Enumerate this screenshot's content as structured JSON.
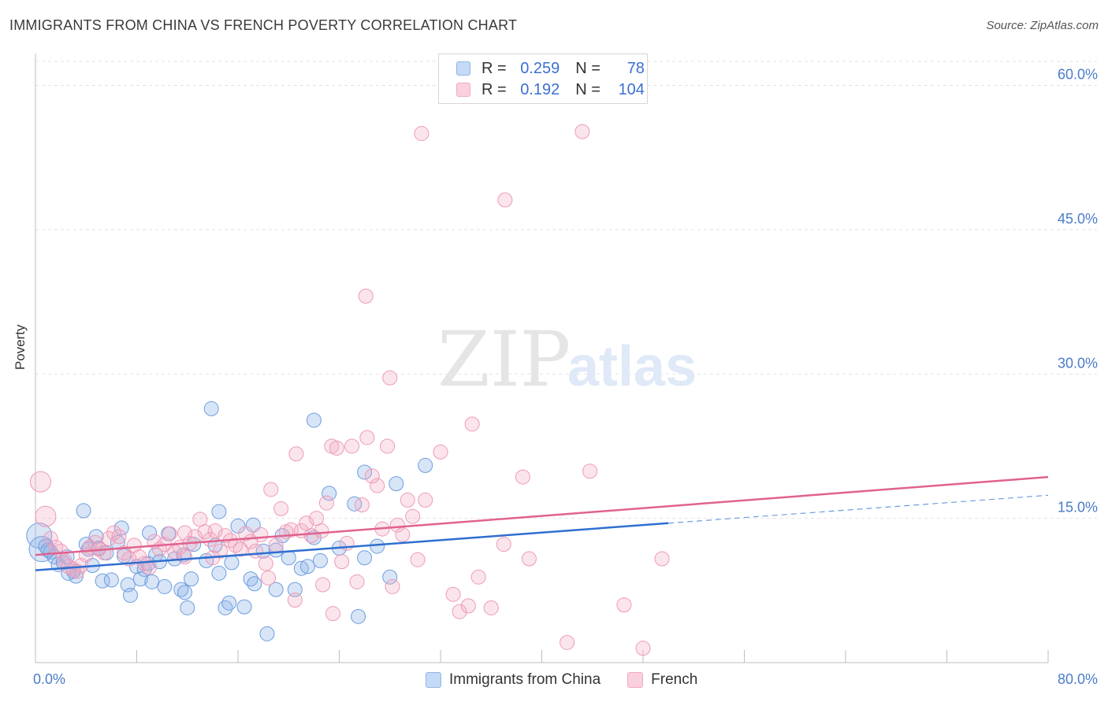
{
  "title": "IMMIGRANTS FROM CHINA VS FRENCH POVERTY CORRELATION CHART",
  "source": "Source: ZipAtlas.com",
  "watermark": {
    "zip": "ZIP",
    "atlas": "atlas"
  },
  "legend": {
    "rows": [
      {
        "r_label": "R =",
        "r_value": "0.259",
        "n_label": "N =",
        "n_value": "78"
      },
      {
        "r_label": "R =",
        "r_value": "0.192",
        "n_label": "N =",
        "n_value": "104"
      }
    ]
  },
  "colors": {
    "blue": "#8fb4e8",
    "blue_line": "#2f6fd0",
    "pink": "#f3a9c1",
    "pink_line": "#e0628f",
    "axis_text": "#4a7cc9"
  },
  "chart_data": {
    "type": "scatter",
    "title": "IMMIGRANTS FROM CHINA VS FRENCH POVERTY CORRELATION CHART",
    "xlabel": "",
    "ylabel": "Poverty",
    "xlim": [
      0,
      80
    ],
    "ylim": [
      0,
      62.5
    ],
    "x_tick_labels": [
      "0.0%",
      "80.0%"
    ],
    "y_ticks": [
      15,
      30,
      45,
      60
    ],
    "y_tick_labels": [
      "15.0%",
      "30.0%",
      "45.0%",
      "60.0%"
    ],
    "grid": "horizontal dashed",
    "legend_position": "top-center",
    "series": [
      {
        "name": "Immigrants from China",
        "color": "#8fb4e8",
        "trend": {
          "x": [
            0,
            50
          ],
          "y": [
            9.6,
            14.5
          ],
          "dashed_extension": {
            "x": [
              50,
              80
            ],
            "y": [
              14.5,
              17.4
            ]
          }
        },
        "points": [
          [
            0.3,
            13.2
          ],
          [
            0.5,
            11.8
          ],
          [
            0.8,
            12.1
          ],
          [
            1.2,
            11.5
          ],
          [
            1.5,
            11.0
          ],
          [
            1.8,
            10.2
          ],
          [
            2.2,
            10.4
          ],
          [
            2.5,
            11.0
          ],
          [
            3.0,
            9.5
          ],
          [
            3.2,
            9.0
          ],
          [
            4.0,
            12.3
          ],
          [
            4.2,
            11.8
          ],
          [
            4.5,
            10.1
          ],
          [
            4.8,
            13.1
          ],
          [
            5.0,
            11.9
          ],
          [
            5.3,
            8.5
          ],
          [
            5.6,
            11.4
          ],
          [
            6.0,
            8.6
          ],
          [
            6.5,
            12.5
          ],
          [
            7.0,
            11.1
          ],
          [
            7.3,
            8.1
          ],
          [
            7.5,
            7.0
          ],
          [
            8.0,
            10.0
          ],
          [
            8.3,
            8.7
          ],
          [
            8.6,
            9.7
          ],
          [
            8.9,
            10.3
          ],
          [
            9.2,
            8.4
          ],
          [
            9.5,
            11.2
          ],
          [
            9.8,
            10.5
          ],
          [
            10.2,
            7.9
          ],
          [
            10.5,
            13.4
          ],
          [
            11.0,
            10.8
          ],
          [
            11.5,
            7.6
          ],
          [
            11.8,
            7.3
          ],
          [
            12.0,
            5.7
          ],
          [
            12.3,
            8.7
          ],
          [
            12.5,
            12.3
          ],
          [
            13.5,
            10.6
          ],
          [
            14.2,
            12.2
          ],
          [
            14.5,
            9.3
          ],
          [
            15.0,
            5.7
          ],
          [
            15.3,
            6.2
          ],
          [
            15.5,
            10.4
          ],
          [
            16.0,
            14.2
          ],
          [
            16.5,
            5.8
          ],
          [
            17.0,
            8.7
          ],
          [
            17.3,
            8.2
          ],
          [
            18.0,
            11.6
          ],
          [
            18.3,
            3.0
          ],
          [
            19.0,
            11.7
          ],
          [
            19.5,
            13.2
          ],
          [
            20.0,
            10.9
          ],
          [
            20.5,
            7.6
          ],
          [
            21.0,
            9.8
          ],
          [
            21.5,
            10.0
          ],
          [
            22.0,
            13.0
          ],
          [
            22.5,
            10.6
          ],
          [
            24.0,
            11.9
          ],
          [
            25.5,
            4.8
          ],
          [
            26.0,
            10.9
          ],
          [
            27.0,
            12.1
          ],
          [
            28.0,
            8.9
          ],
          [
            22.0,
            25.2
          ],
          [
            13.9,
            26.4
          ],
          [
            28.5,
            18.6
          ],
          [
            30.8,
            20.5
          ],
          [
            26.0,
            19.8
          ],
          [
            25.2,
            16.5
          ],
          [
            23.2,
            17.6
          ],
          [
            19.0,
            7.6
          ],
          [
            3.8,
            15.8
          ],
          [
            14.5,
            15.7
          ],
          [
            17.2,
            14.3
          ],
          [
            6.8,
            14.0
          ],
          [
            9.0,
            13.5
          ],
          [
            11.7,
            11.2
          ],
          [
            1.0,
            11.7
          ],
          [
            2.6,
            9.3
          ]
        ]
      },
      {
        "name": "French",
        "color": "#f3a9c1",
        "trend": {
          "x": [
            0,
            80
          ],
          "y": [
            11.2,
            19.3
          ]
        },
        "points": [
          [
            0.4,
            18.8
          ],
          [
            0.8,
            15.2
          ],
          [
            1.2,
            12.9
          ],
          [
            1.6,
            12.0
          ],
          [
            2.0,
            11.6
          ],
          [
            2.3,
            10.6
          ],
          [
            2.6,
            10.0
          ],
          [
            3.0,
            9.7
          ],
          [
            3.3,
            9.5
          ],
          [
            3.6,
            10.1
          ],
          [
            4.0,
            11.2
          ],
          [
            4.3,
            12.0
          ],
          [
            4.7,
            12.5
          ],
          [
            5.0,
            11.8
          ],
          [
            5.4,
            11.4
          ],
          [
            5.8,
            12.9
          ],
          [
            6.2,
            13.5
          ],
          [
            6.6,
            13.1
          ],
          [
            7.0,
            11.4
          ],
          [
            7.4,
            10.8
          ],
          [
            7.8,
            12.2
          ],
          [
            8.2,
            11.0
          ],
          [
            8.6,
            10.3
          ],
          [
            9.0,
            9.9
          ],
          [
            9.4,
            12.6
          ],
          [
            9.8,
            11.8
          ],
          [
            10.2,
            12.3
          ],
          [
            10.6,
            13.4
          ],
          [
            11.0,
            11.5
          ],
          [
            11.4,
            12.0
          ],
          [
            11.8,
            11.0
          ],
          [
            12.2,
            12.4
          ],
          [
            12.6,
            13.1
          ],
          [
            13.0,
            14.9
          ],
          [
            13.4,
            13.6
          ],
          [
            13.8,
            12.8
          ],
          [
            14.2,
            13.7
          ],
          [
            14.6,
            11.6
          ],
          [
            15.0,
            13.2
          ],
          [
            15.4,
            12.7
          ],
          [
            15.8,
            12.2
          ],
          [
            16.2,
            11.8
          ],
          [
            16.6,
            13.4
          ],
          [
            17.0,
            12.6
          ],
          [
            17.4,
            11.6
          ],
          [
            17.8,
            13.3
          ],
          [
            18.2,
            10.3
          ],
          [
            18.6,
            18.0
          ],
          [
            19.0,
            12.2
          ],
          [
            19.4,
            16.0
          ],
          [
            19.8,
            13.6
          ],
          [
            20.2,
            13.8
          ],
          [
            20.6,
            21.7
          ],
          [
            21.0,
            13.7
          ],
          [
            21.4,
            14.5
          ],
          [
            21.8,
            13.2
          ],
          [
            22.2,
            15.0
          ],
          [
            22.6,
            13.7
          ],
          [
            23.0,
            16.6
          ],
          [
            23.4,
            22.5
          ],
          [
            23.8,
            22.3
          ],
          [
            24.2,
            10.5
          ],
          [
            24.6,
            12.4
          ],
          [
            25.0,
            22.5
          ],
          [
            25.4,
            8.4
          ],
          [
            25.8,
            16.4
          ],
          [
            26.2,
            23.4
          ],
          [
            26.6,
            19.4
          ],
          [
            27.0,
            18.4
          ],
          [
            27.4,
            13.9
          ],
          [
            27.8,
            22.5
          ],
          [
            28.2,
            7.9
          ],
          [
            28.6,
            14.3
          ],
          [
            29.0,
            13.3
          ],
          [
            29.4,
            16.9
          ],
          [
            29.8,
            15.2
          ],
          [
            30.2,
            10.7
          ],
          [
            30.8,
            16.9
          ],
          [
            32.0,
            21.9
          ],
          [
            33.0,
            7.1
          ],
          [
            33.5,
            5.3
          ],
          [
            34.2,
            5.9
          ],
          [
            34.5,
            24.8
          ],
          [
            35.0,
            8.9
          ],
          [
            36.0,
            5.7
          ],
          [
            37.0,
            12.3
          ],
          [
            38.5,
            19.3
          ],
          [
            39.0,
            10.8
          ],
          [
            42.0,
            2.1
          ],
          [
            43.8,
            19.9
          ],
          [
            46.5,
            6.0
          ],
          [
            48.0,
            1.5
          ],
          [
            49.5,
            10.8
          ],
          [
            30.5,
            55.0
          ],
          [
            43.2,
            55.2
          ],
          [
            37.1,
            48.1
          ],
          [
            26.1,
            38.1
          ],
          [
            28.0,
            29.6
          ],
          [
            11.8,
            13.5
          ],
          [
            20.5,
            6.5
          ],
          [
            22.7,
            8.1
          ],
          [
            23.5,
            5.1
          ],
          [
            14.0,
            10.9
          ],
          [
            18.4,
            8.8
          ]
        ]
      }
    ]
  },
  "bottom_legend": [
    "Immigrants from China",
    "French"
  ]
}
